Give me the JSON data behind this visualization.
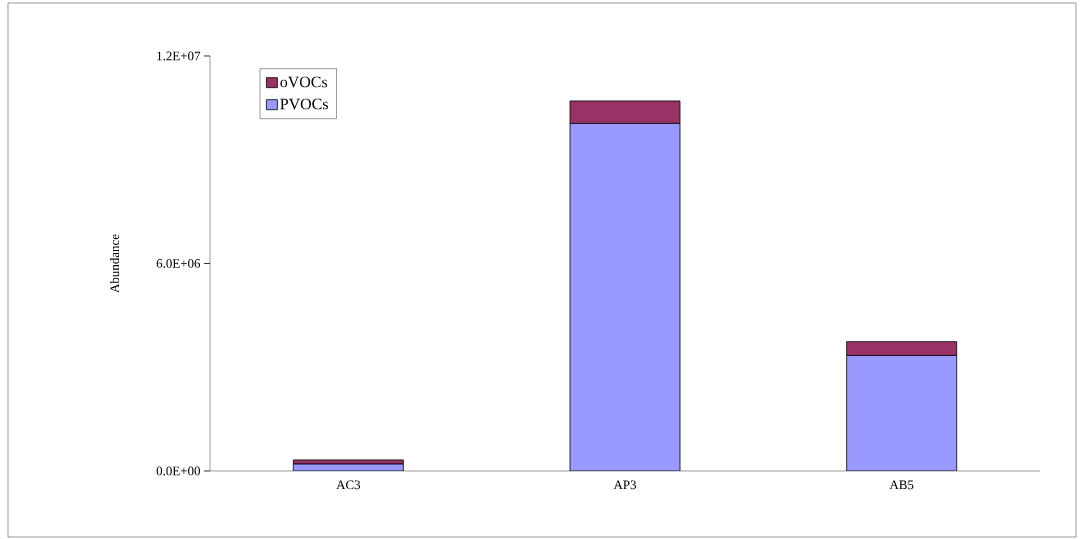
{
  "chart_data": {
    "type": "bar",
    "stacked": true,
    "ylabel": "Abundance",
    "categories": [
      "AC3",
      "AP3",
      "AB5"
    ],
    "series": [
      {
        "name": "PVOCs",
        "color": "#9999ff",
        "values": [
          200000,
          10050000,
          3340000
        ]
      },
      {
        "name": "oVOCs",
        "color": "#993366",
        "values": [
          120000,
          650000,
          400000
        ]
      }
    ],
    "ylim": [
      0,
      12000000
    ],
    "yticks": [
      {
        "value": 0,
        "label": "0.0E+00"
      },
      {
        "value": 6000000,
        "label": "6.0E+06"
      },
      {
        "value": 12000000,
        "label": "1.2E+07"
      }
    ],
    "grid": false,
    "legend": "top left"
  }
}
